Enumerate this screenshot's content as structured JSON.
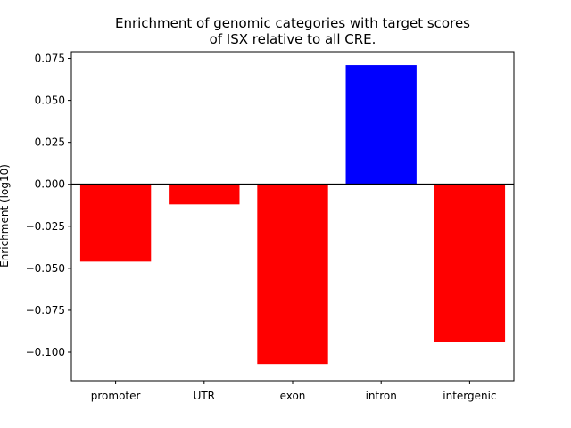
{
  "chart_data": {
    "type": "bar",
    "title_lines": [
      "Enrichment of genomic categories with target scores",
      "of ISX relative to all CRE."
    ],
    "xlabel": "",
    "ylabel": "Enrichment (log10)",
    "categories": [
      "promoter",
      "UTR",
      "exon",
      "intron",
      "intergenic"
    ],
    "values": [
      -0.046,
      -0.012,
      -0.107,
      0.071,
      -0.094
    ],
    "bar_colors": [
      "#ff0000",
      "#ff0000",
      "#ff0000",
      "#0000ff",
      "#ff0000"
    ],
    "ylim": [
      -0.117,
      0.079
    ],
    "yticks": [
      0.075,
      0.05,
      0.025,
      0.0,
      -0.025,
      -0.05,
      -0.075,
      -0.1
    ],
    "ytick_labels": [
      "0.075",
      "0.050",
      "0.025",
      "0.000",
      "−0.025",
      "−0.050",
      "−0.075",
      "−0.100"
    ],
    "zero_line": true,
    "grid": false
  }
}
